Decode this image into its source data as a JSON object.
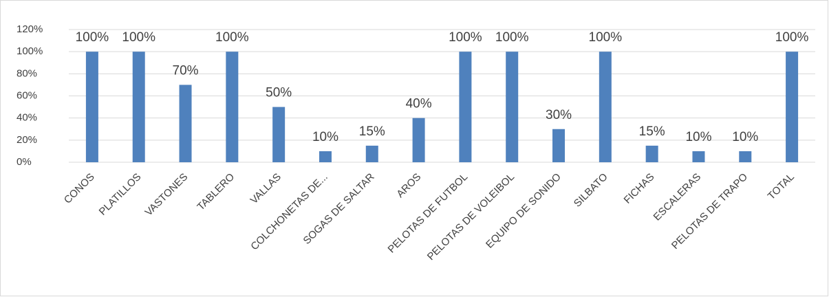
{
  "chart_data": {
    "type": "bar",
    "categories": [
      "CONOS",
      "PLATILLOS",
      "VASTONES",
      "TABLERO",
      "VALLAS",
      "COLCHONETAS DE...",
      "SOGAS DE SALTAR",
      "AROS",
      "PELOTAS DE FUTBOL",
      "PELOTAS DE VOLEIBOL",
      "EQUIPO DE SONIDO",
      "SILBATO",
      "FICHAS",
      "ESCALERAS",
      "PELOTAS DE TRAPO",
      "TOTAL"
    ],
    "values": [
      100,
      100,
      70,
      100,
      50,
      10,
      15,
      40,
      100,
      100,
      30,
      100,
      15,
      10,
      10,
      100
    ],
    "value_labels": [
      "100%",
      "100%",
      "70%",
      "100%",
      "50%",
      "10%",
      "15%",
      "40%",
      "100%",
      "100%",
      "30%",
      "100%",
      "15%",
      "10%",
      "10%",
      "100%"
    ],
    "color": "#4f81bd",
    "ylim": [
      0,
      120
    ],
    "yticks": [
      {
        "value": 0,
        "label": "0%"
      },
      {
        "value": 20,
        "label": "20%"
      },
      {
        "value": 40,
        "label": "40%"
      },
      {
        "value": 60,
        "label": "60%"
      },
      {
        "value": 80,
        "label": "80%"
      },
      {
        "value": 100,
        "label": "100%"
      },
      {
        "value": 120,
        "label": "120%"
      }
    ],
    "grid": true
  }
}
